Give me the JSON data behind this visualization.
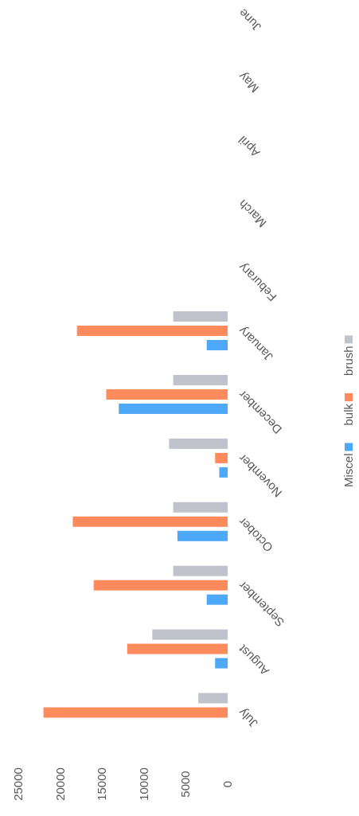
{
  "chart_data": {
    "type": "bar",
    "orientation": "horizontal",
    "categories": [
      "June",
      "May",
      "April",
      "March",
      "Feburary",
      "January",
      "December",
      "November",
      "October",
      "September",
      "August",
      "July"
    ],
    "series": [
      {
        "name": "Miscel",
        "color": "#4ea8f8",
        "values": [
          null,
          null,
          null,
          null,
          null,
          2500,
          13000,
          1000,
          6000,
          2500,
          1500,
          null
        ]
      },
      {
        "name": "bulk",
        "color": "#ff8a5c",
        "values": [
          null,
          null,
          null,
          null,
          null,
          18000,
          14500,
          1500,
          18500,
          16000,
          12000,
          22000
        ]
      },
      {
        "name": "brush",
        "color": "#c0c3cb",
        "values": [
          null,
          null,
          null,
          null,
          null,
          6500,
          6500,
          7000,
          6500,
          6500,
          9000,
          3500
        ]
      }
    ],
    "xlim": [
      25000,
      0
    ],
    "xticks": [
      25000,
      20000,
      15000,
      10000,
      5000,
      0
    ],
    "grid": false,
    "legend": "right"
  }
}
